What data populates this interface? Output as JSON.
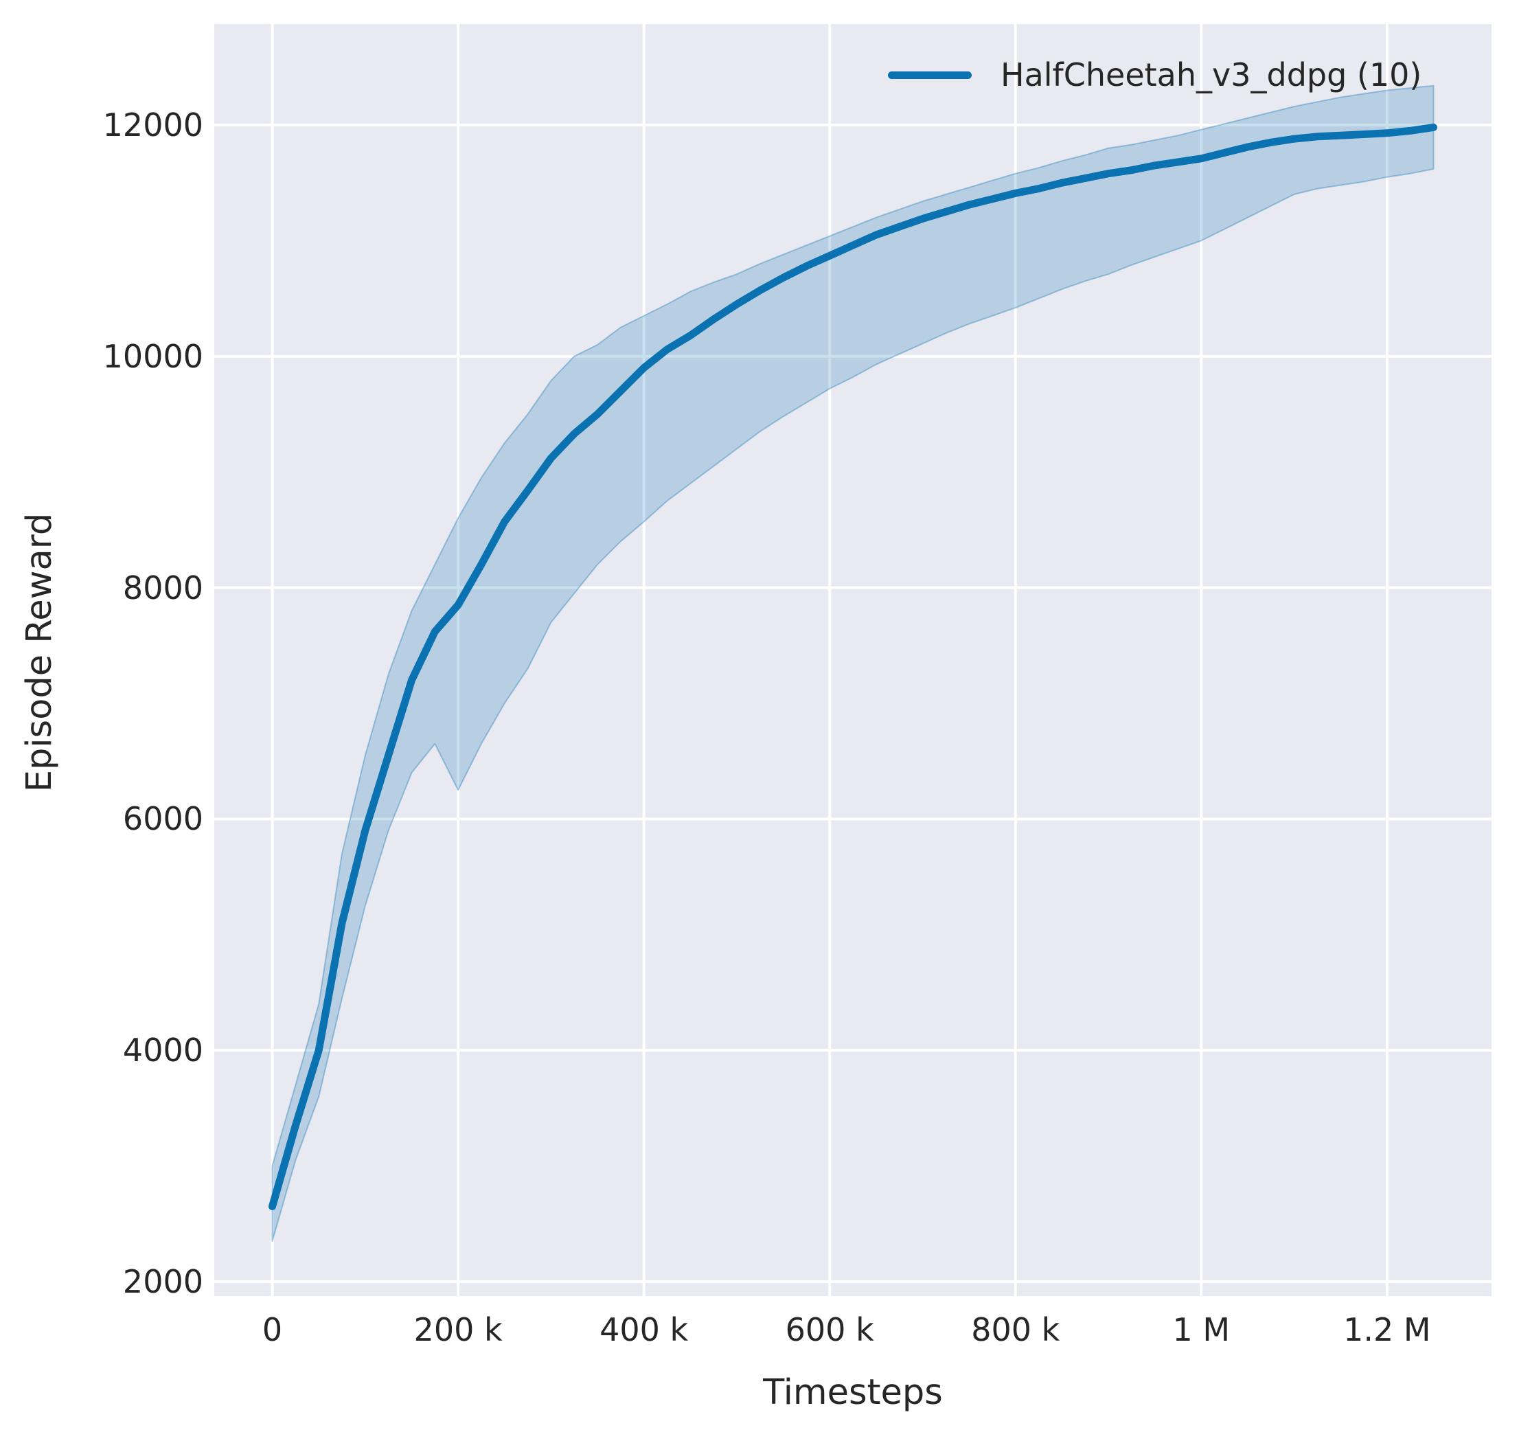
{
  "chart_data": {
    "type": "line",
    "title": "",
    "xlabel": "Timesteps",
    "ylabel": "Episode Reward",
    "legend_position": "upper right",
    "grid": true,
    "panel_bg": "#e9e9f1",
    "grid_color": "#ffffff",
    "line_color": "#0b72b2",
    "band_fill": "rgba(11,114,178,0.22)",
    "band_edge": "rgba(11,114,178,0.35)",
    "xlim": [
      -62500,
      1312500
    ],
    "ylim": [
      1875,
      12873
    ],
    "x_ticks": [
      {
        "value": 0,
        "label": "0"
      },
      {
        "value": 200000,
        "label": "200 k"
      },
      {
        "value": 400000,
        "label": "400 k"
      },
      {
        "value": 600000,
        "label": "600 k"
      },
      {
        "value": 800000,
        "label": "800 k"
      },
      {
        "value": 1000000,
        "label": "1 M"
      },
      {
        "value": 1200000,
        "label": "1.2 M"
      }
    ],
    "y_ticks": [
      {
        "value": 2000,
        "label": "2000"
      },
      {
        "value": 4000,
        "label": "4000"
      },
      {
        "value": 6000,
        "label": "6000"
      },
      {
        "value": 8000,
        "label": "8000"
      },
      {
        "value": 10000,
        "label": "10000"
      },
      {
        "value": 12000,
        "label": "12000"
      }
    ],
    "series": [
      {
        "name": "HalfCheetah_v3_ddpg (10)",
        "x": [
          0,
          25000,
          50000,
          75000,
          100000,
          125000,
          150000,
          175000,
          200000,
          225000,
          250000,
          275000,
          300000,
          325000,
          350000,
          375000,
          400000,
          425000,
          450000,
          475000,
          500000,
          525000,
          550000,
          575000,
          600000,
          625000,
          650000,
          675000,
          700000,
          725000,
          750000,
          775000,
          800000,
          825000,
          850000,
          875000,
          900000,
          925000,
          950000,
          975000,
          1000000,
          1025000,
          1050000,
          1075000,
          1100000,
          1125000,
          1150000,
          1175000,
          1200000,
          1225000,
          1250000
        ],
        "mean": [
          2650,
          3350,
          4000,
          5100,
          5900,
          6550,
          7200,
          7620,
          7850,
          8200,
          8570,
          8840,
          9120,
          9330,
          9500,
          9700,
          9900,
          10060,
          10180,
          10320,
          10450,
          10570,
          10680,
          10780,
          10870,
          10960,
          11050,
          11120,
          11190,
          11250,
          11310,
          11360,
          11410,
          11450,
          11500,
          11540,
          11580,
          11610,
          11650,
          11680,
          11710,
          11760,
          11810,
          11850,
          11880,
          11900,
          11910,
          11920,
          11930,
          11950,
          11980
        ],
        "lo": [
          2350,
          3050,
          3600,
          4450,
          5250,
          5900,
          6400,
          6650,
          6250,
          6650,
          7000,
          7300,
          7700,
          7950,
          8200,
          8400,
          8570,
          8750,
          8900,
          9050,
          9200,
          9350,
          9480,
          9600,
          9720,
          9820,
          9930,
          10020,
          10110,
          10200,
          10280,
          10350,
          10420,
          10500,
          10580,
          10650,
          10710,
          10790,
          10860,
          10930,
          11000,
          11100,
          11200,
          11300,
          11400,
          11450,
          11480,
          11510,
          11550,
          11580,
          11620
        ],
        "hi": [
          3000,
          3700,
          4400,
          5700,
          6550,
          7250,
          7800,
          8200,
          8600,
          8950,
          9250,
          9500,
          9790,
          10000,
          10100,
          10250,
          10350,
          10450,
          10560,
          10640,
          10710,
          10800,
          10880,
          10960,
          11040,
          11120,
          11200,
          11270,
          11340,
          11400,
          11460,
          11520,
          11580,
          11630,
          11690,
          11740,
          11800,
          11830,
          11870,
          11910,
          11960,
          12010,
          12060,
          12110,
          12160,
          12200,
          12240,
          12270,
          12300,
          12320,
          12340
        ]
      }
    ]
  }
}
